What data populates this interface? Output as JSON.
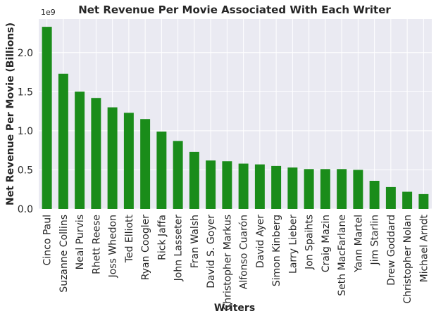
{
  "chart_data": {
    "type": "bar",
    "title": "Net Revenue Per Movie Associated With Each Writer",
    "xlabel": "Writers",
    "ylabel": "Net Revenue Per Movie (Billions)",
    "y_offset_label": "1e9",
    "ylim": [
      0,
      2.43
    ],
    "yticks": [
      "0.0",
      "0.5",
      "1.0",
      "1.5",
      "2.0"
    ],
    "grid": true,
    "bar_color": "#1a8c1a",
    "background": "#eaeaf2",
    "categories": [
      "Cinco Paul",
      "Suzanne Collins",
      "Neal Purvis",
      "Rhett Reese",
      "Joss Whedon",
      "Ted Elliott",
      "Ryan Coogler",
      "Rick Jaffa",
      "John Lasseter",
      "Fran Walsh",
      "David S. Goyer",
      "Christopher Markus",
      "Alfonso Cuarón",
      "David Ayer",
      "Simon Kinberg",
      "Larry Lieber",
      "Jon Spaihts",
      "Craig Mazin",
      "Seth MacFarlane",
      "Yann Martel",
      "Jim Starlin",
      "Drew Goddard",
      "Christopher Nolan",
      "Michael Arndt"
    ],
    "values": [
      2.33,
      1.73,
      1.5,
      1.42,
      1.3,
      1.23,
      1.15,
      0.99,
      0.87,
      0.73,
      0.62,
      0.61,
      0.58,
      0.57,
      0.55,
      0.53,
      0.51,
      0.51,
      0.51,
      0.5,
      0.36,
      0.28,
      0.22,
      0.19
    ]
  }
}
